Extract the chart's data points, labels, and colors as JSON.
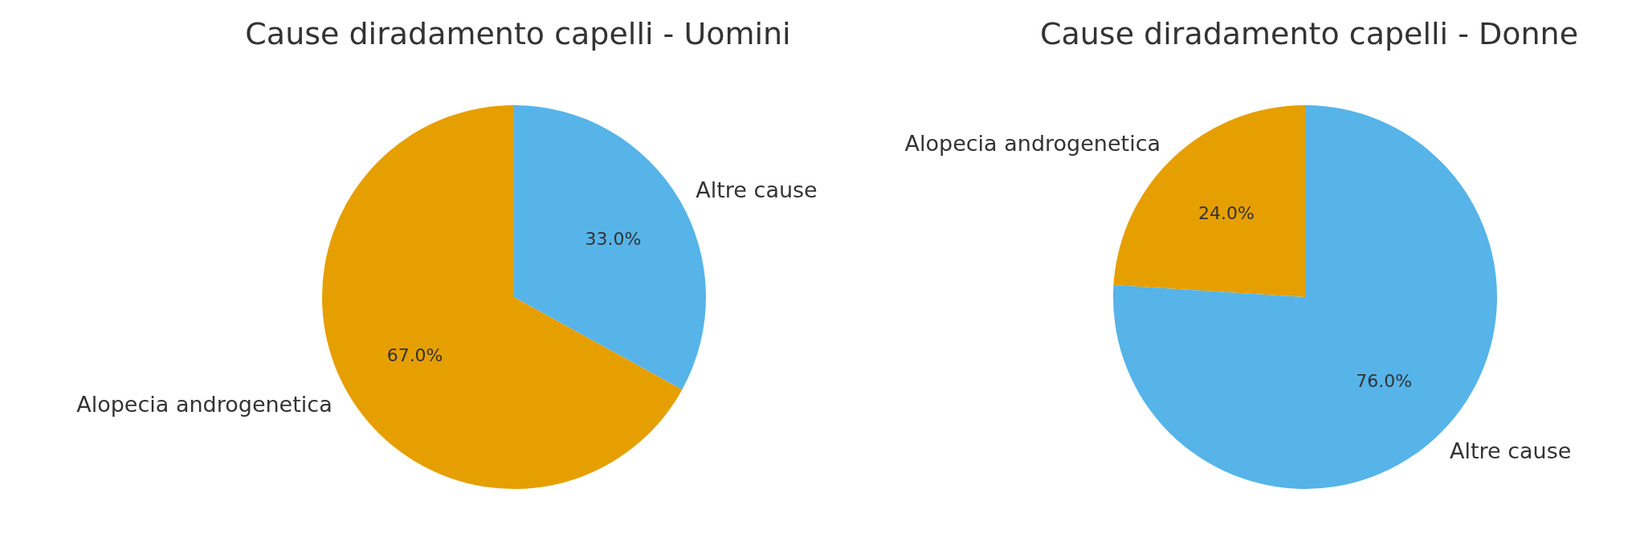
{
  "chart_data": [
    {
      "type": "pie",
      "title": "Cause diradamento capelli - Uomini",
      "categories": [
        "Alopecia androgenetica",
        "Altre cause"
      ],
      "values": [
        67.0,
        33.0
      ],
      "colors": [
        "#e69f00",
        "#56b4e9"
      ],
      "value_labels": [
        "67.0%",
        "33.0%"
      ]
    },
    {
      "type": "pie",
      "title": "Cause diradamento capelli - Donne",
      "categories": [
        "Alopecia androgenetica",
        "Altre cause"
      ],
      "values": [
        24.0,
        76.0
      ],
      "colors": [
        "#e69f00",
        "#56b4e9"
      ],
      "value_labels": [
        "24.0%",
        "76.0%"
      ]
    }
  ]
}
